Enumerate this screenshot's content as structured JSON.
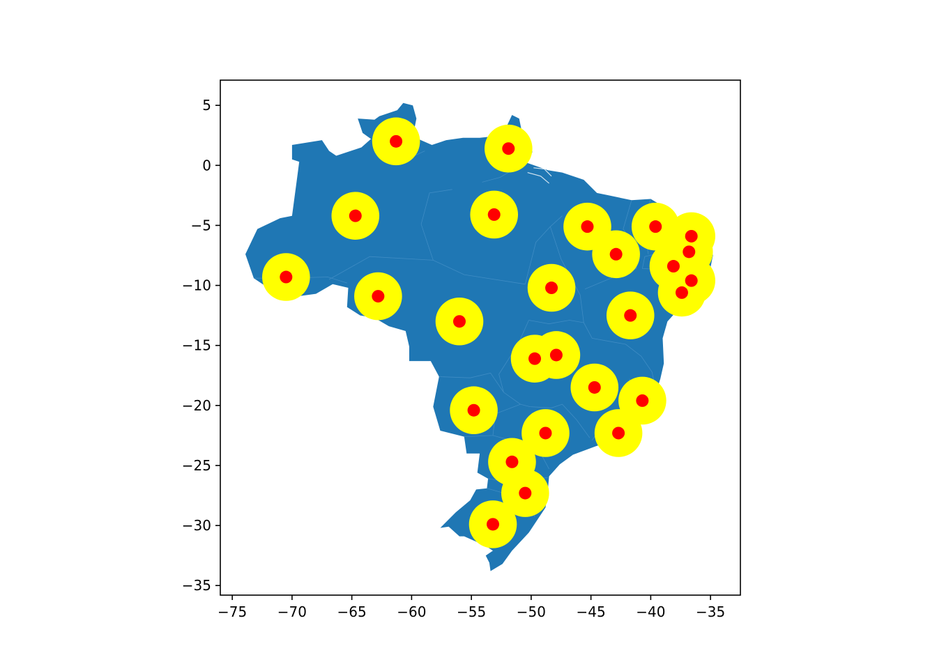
{
  "chart_data": {
    "type": "scatter",
    "title": "",
    "xlabel": "",
    "ylabel": "",
    "xlim": [
      -76,
      -32.5
    ],
    "ylim": [
      -35.8,
      7.1
    ],
    "xticks": [
      -75,
      -70,
      -65,
      -60,
      -55,
      -50,
      -45,
      -40,
      -35
    ],
    "yticks": [
      5,
      0,
      -5,
      -10,
      -15,
      -20,
      -25,
      -30,
      -35
    ],
    "xtick_labels": [
      "−75",
      "−70",
      "−65",
      "−60",
      "−55",
      "−50",
      "−45",
      "−40",
      "−35"
    ],
    "ytick_labels": [
      "5",
      "0",
      "−5",
      "−10",
      "−15",
      "−20",
      "−25",
      "−30",
      "−35"
    ],
    "grid": false,
    "legend": null,
    "colors": {
      "land": "#1f77b4",
      "buffer": "#ffff00",
      "point": "#ff0000",
      "border": "#3f8cc4"
    },
    "buffer_radius_deg": 2,
    "series": [
      {
        "points": [
          {
            "x": -61.3,
            "y": 2.0
          },
          {
            "x": -51.9,
            "y": 1.4
          },
          {
            "x": -64.7,
            "y": -4.2
          },
          {
            "x": -53.1,
            "y": -4.1
          },
          {
            "x": -45.3,
            "y": -5.1
          },
          {
            "x": -39.6,
            "y": -5.1
          },
          {
            "x": -36.6,
            "y": -5.9
          },
          {
            "x": -42.9,
            "y": -7.4
          },
          {
            "x": -36.8,
            "y": -7.2
          },
          {
            "x": -38.1,
            "y": -8.4
          },
          {
            "x": -70.5,
            "y": -9.3
          },
          {
            "x": -36.6,
            "y": -9.6
          },
          {
            "x": -48.3,
            "y": -10.2
          },
          {
            "x": -37.4,
            "y": -10.6
          },
          {
            "x": -62.8,
            "y": -10.9
          },
          {
            "x": -41.7,
            "y": -12.5
          },
          {
            "x": -56.0,
            "y": -13.0
          },
          {
            "x": -47.9,
            "y": -15.8
          },
          {
            "x": -49.7,
            "y": -16.1
          },
          {
            "x": -44.7,
            "y": -18.5
          },
          {
            "x": -40.7,
            "y": -19.6
          },
          {
            "x": -54.8,
            "y": -20.4
          },
          {
            "x": -42.7,
            "y": -22.3
          },
          {
            "x": -48.8,
            "y": -22.3
          },
          {
            "x": -51.6,
            "y": -24.7
          },
          {
            "x": -50.5,
            "y": -27.3
          },
          {
            "x": -53.2,
            "y": -29.9
          }
        ]
      }
    ]
  },
  "map": {
    "outline": [
      [
        -73.9,
        -7.4
      ],
      [
        -72.9,
        -5.3
      ],
      [
        -71.0,
        -4.4
      ],
      [
        -70.0,
        -4.2
      ],
      [
        -69.6,
        -1.2
      ],
      [
        -69.4,
        0.3
      ],
      [
        -70.0,
        0.5
      ],
      [
        -70.0,
        1.7
      ],
      [
        -67.5,
        2.1
      ],
      [
        -66.9,
        1.2
      ],
      [
        -66.3,
        0.8
      ],
      [
        -64.2,
        1.5
      ],
      [
        -63.4,
        2.2
      ],
      [
        -64.1,
        2.7
      ],
      [
        -64.5,
        3.9
      ],
      [
        -63.1,
        3.8
      ],
      [
        -62.7,
        4.1
      ],
      [
        -61.2,
        4.6
      ],
      [
        -60.7,
        5.2
      ],
      [
        -59.9,
        5.0
      ],
      [
        -59.6,
        3.9
      ],
      [
        -59.9,
        2.4
      ],
      [
        -58.3,
        1.7
      ],
      [
        -57.1,
        2.1
      ],
      [
        -55.7,
        2.3
      ],
      [
        -54.3,
        2.3
      ],
      [
        -52.4,
        2.5
      ],
      [
        -51.6,
        4.2
      ],
      [
        -51.0,
        3.9
      ],
      [
        -50.7,
        2.4
      ],
      [
        -50.0,
        1.6
      ],
      [
        -49.9,
        1.1
      ],
      [
        -50.6,
        0.3
      ],
      [
        -48.6,
        -0.4
      ],
      [
        -47.4,
        -0.6
      ],
      [
        -45.6,
        -1.2
      ],
      [
        -44.5,
        -2.3
      ],
      [
        -43.5,
        -2.5
      ],
      [
        -41.6,
        -2.9
      ],
      [
        -40.0,
        -2.8
      ],
      [
        -38.5,
        -3.7
      ],
      [
        -37.2,
        -4.8
      ],
      [
        -35.6,
        -5.1
      ],
      [
        -35.1,
        -6.5
      ],
      [
        -34.8,
        -7.5
      ],
      [
        -35.1,
        -9.0
      ],
      [
        -36.2,
        -10.2
      ],
      [
        -37.6,
        -11.9
      ],
      [
        -38.6,
        -13.0
      ],
      [
        -39.0,
        -14.4
      ],
      [
        -38.9,
        -16.5
      ],
      [
        -39.2,
        -17.8
      ],
      [
        -39.7,
        -19.3
      ],
      [
        -40.8,
        -20.9
      ],
      [
        -41.8,
        -22.4
      ],
      [
        -43.1,
        -22.9
      ],
      [
        -44.6,
        -23.4
      ],
      [
        -46.5,
        -24.1
      ],
      [
        -47.6,
        -24.9
      ],
      [
        -48.5,
        -25.9
      ],
      [
        -48.6,
        -27.0
      ],
      [
        -48.8,
        -28.5
      ],
      [
        -50.2,
        -30.6
      ],
      [
        -51.6,
        -32.1
      ],
      [
        -52.4,
        -33.2
      ],
      [
        -53.4,
        -33.8
      ],
      [
        -53.5,
        -33.1
      ],
      [
        -53.8,
        -32.5
      ],
      [
        -53.2,
        -32.1
      ],
      [
        -53.8,
        -31.7
      ],
      [
        -55.6,
        -30.9
      ],
      [
        -56.0,
        -30.9
      ],
      [
        -56.9,
        -30.1
      ],
      [
        -57.6,
        -30.2
      ],
      [
        -56.3,
        -28.9
      ],
      [
        -55.1,
        -27.9
      ],
      [
        -54.6,
        -27.0
      ],
      [
        -53.7,
        -26.9
      ],
      [
        -53.6,
        -26.1
      ],
      [
        -54.5,
        -25.6
      ],
      [
        -54.3,
        -24.0
      ],
      [
        -55.4,
        -24.0
      ],
      [
        -55.6,
        -22.6
      ],
      [
        -57.6,
        -22.1
      ],
      [
        -58.2,
        -20.1
      ],
      [
        -57.7,
        -17.6
      ],
      [
        -58.4,
        -16.3
      ],
      [
        -60.2,
        -16.3
      ],
      [
        -60.2,
        -15.1
      ],
      [
        -60.5,
        -13.8
      ],
      [
        -61.9,
        -13.4
      ],
      [
        -63.1,
        -12.7
      ],
      [
        -64.3,
        -12.5
      ],
      [
        -65.4,
        -11.8
      ],
      [
        -65.3,
        -10.2
      ],
      [
        -66.6,
        -9.9
      ],
      [
        -68.0,
        -10.7
      ],
      [
        -69.5,
        -10.9
      ],
      [
        -70.6,
        -11.0
      ],
      [
        -70.6,
        -9.5
      ],
      [
        -72.3,
        -10.0
      ],
      [
        -73.2,
        -9.4
      ],
      [
        -73.9,
        -7.4
      ]
    ],
    "state_borders": [
      [
        [
          -63.4,
          2.2
        ],
        [
          -61.9,
          0.9
        ],
        [
          -60.2,
          0.6
        ],
        [
          -58.9,
          1.2
        ]
      ],
      [
        [
          -50.6,
          0.3
        ],
        [
          -51.4,
          -0.3
        ],
        [
          -52.6,
          -1.0
        ],
        [
          -54.1,
          -1.4
        ]
      ],
      [
        [
          -73.2,
          -9.4
        ],
        [
          -70.5,
          -9.4
        ],
        [
          -67.0,
          -9.3
        ],
        [
          -65.4,
          -9.8
        ]
      ],
      [
        [
          -66.9,
          -9.5
        ],
        [
          -63.5,
          -7.6
        ],
        [
          -58.2,
          -7.9
        ],
        [
          -55.6,
          -9.1
        ],
        [
          -50.5,
          -9.9
        ]
      ],
      [
        [
          -58.2,
          -7.9
        ],
        [
          -59.2,
          -4.9
        ],
        [
          -58.5,
          -2.3
        ],
        [
          -56.6,
          -2.0
        ]
      ],
      [
        [
          -50.5,
          -9.9
        ],
        [
          -49.6,
          -6.4
        ],
        [
          -48.4,
          -5.1
        ],
        [
          -47.4,
          -4.2
        ]
      ],
      [
        [
          -48.4,
          -5.1
        ],
        [
          -47.5,
          -7.8
        ],
        [
          -46.6,
          -9.5
        ],
        [
          -45.9,
          -10.8
        ],
        [
          -45.6,
          -13.1
        ]
      ],
      [
        [
          -45.6,
          -13.1
        ],
        [
          -46.8,
          -12.9
        ],
        [
          -48.5,
          -13.2
        ],
        [
          -50.2,
          -12.9
        ]
      ],
      [
        [
          -41.6,
          -2.9
        ],
        [
          -42.3,
          -5.3
        ],
        [
          -41.2,
          -6.9
        ],
        [
          -41.2,
          -8.6
        ],
        [
          -43.1,
          -9.3
        ],
        [
          -45.5,
          -10.3
        ]
      ],
      [
        [
          -40.0,
          -2.8
        ],
        [
          -40.6,
          -4.6
        ],
        [
          -40.2,
          -7.4
        ]
      ],
      [
        [
          -38.5,
          -3.7
        ],
        [
          -37.9,
          -4.6
        ],
        [
          -37.7,
          -5.8
        ],
        [
          -38.6,
          -6.6
        ]
      ],
      [
        [
          -37.2,
          -4.8
        ],
        [
          -38.3,
          -6.1
        ],
        [
          -37.6,
          -6.9
        ],
        [
          -35.3,
          -6.3
        ]
      ],
      [
        [
          -37.6,
          -6.9
        ],
        [
          -40.5,
          -7.6
        ],
        [
          -40.7,
          -8.6
        ],
        [
          -38.6,
          -8.7
        ],
        [
          -36.5,
          -8.8
        ],
        [
          -35.2,
          -8.9
        ]
      ],
      [
        [
          -38.6,
          -8.7
        ],
        [
          -38.0,
          -9.6
        ],
        [
          -36.4,
          -10.5
        ]
      ],
      [
        [
          -38.3,
          -9.1
        ],
        [
          -37.9,
          -10.1
        ],
        [
          -37.6,
          -11.5
        ]
      ],
      [
        [
          -45.6,
          -13.1
        ],
        [
          -44.9,
          -14.4
        ],
        [
          -42.1,
          -14.9
        ],
        [
          -40.8,
          -15.9
        ],
        [
          -39.9,
          -17.2
        ],
        [
          -39.7,
          -18.1
        ]
      ],
      [
        [
          -41.8,
          -17.8
        ],
        [
          -41.2,
          -18.6
        ],
        [
          -41.8,
          -20.6
        ],
        [
          -41.0,
          -21.3
        ]
      ],
      [
        [
          -41.8,
          -22.4
        ],
        [
          -42.9,
          -21.9
        ],
        [
          -44.5,
          -22.3
        ],
        [
          -44.9,
          -22.9
        ]
      ],
      [
        [
          -50.2,
          -12.9
        ],
        [
          -51.1,
          -14.9
        ],
        [
          -52.7,
          -17.4
        ],
        [
          -52.3,
          -18.9
        ],
        [
          -50.9,
          -19.9
        ],
        [
          -50.1,
          -20.1
        ]
      ],
      [
        [
          -52.3,
          -18.9
        ],
        [
          -53.4,
          -17.3
        ],
        [
          -55.1,
          -17.7
        ],
        [
          -57.7,
          -17.6
        ]
      ],
      [
        [
          -50.9,
          -19.9
        ],
        [
          -53.0,
          -20.7
        ],
        [
          -53.2,
          -22.5
        ],
        [
          -55.6,
          -22.6
        ]
      ],
      [
        [
          -50.1,
          -20.1
        ],
        [
          -48.3,
          -20.2
        ],
        [
          -47.4,
          -19.9
        ],
        [
          -46.2,
          -21.2
        ],
        [
          -45.1,
          -22.7
        ]
      ],
      [
        [
          -47.7,
          -15.5
        ],
        [
          -48.2,
          -16.0
        ],
        [
          -47.3,
          -16.1
        ],
        [
          -47.4,
          -15.5
        ],
        [
          -47.7,
          -15.5
        ]
      ],
      [
        [
          -53.2,
          -22.5
        ],
        [
          -51.7,
          -22.9
        ],
        [
          -50.1,
          -22.9
        ],
        [
          -49.2,
          -24.0
        ],
        [
          -48.5,
          -25.3
        ]
      ],
      [
        [
          -53.6,
          -26.1
        ],
        [
          -51.5,
          -26.4
        ],
        [
          -50.0,
          -26.2
        ],
        [
          -48.6,
          -26.0
        ]
      ],
      [
        [
          -53.7,
          -26.9
        ],
        [
          -51.2,
          -27.6
        ],
        [
          -49.8,
          -28.6
        ],
        [
          -49.7,
          -29.3
        ]
      ]
    ],
    "rivers": [
      [
        [
          -50.3,
          -0.6
        ],
        [
          -49.2,
          -0.9
        ],
        [
          -48.5,
          -1.5
        ]
      ],
      [
        [
          -49.8,
          -0.2
        ],
        [
          -48.9,
          -0.3
        ],
        [
          -48.3,
          -0.9
        ]
      ]
    ]
  }
}
